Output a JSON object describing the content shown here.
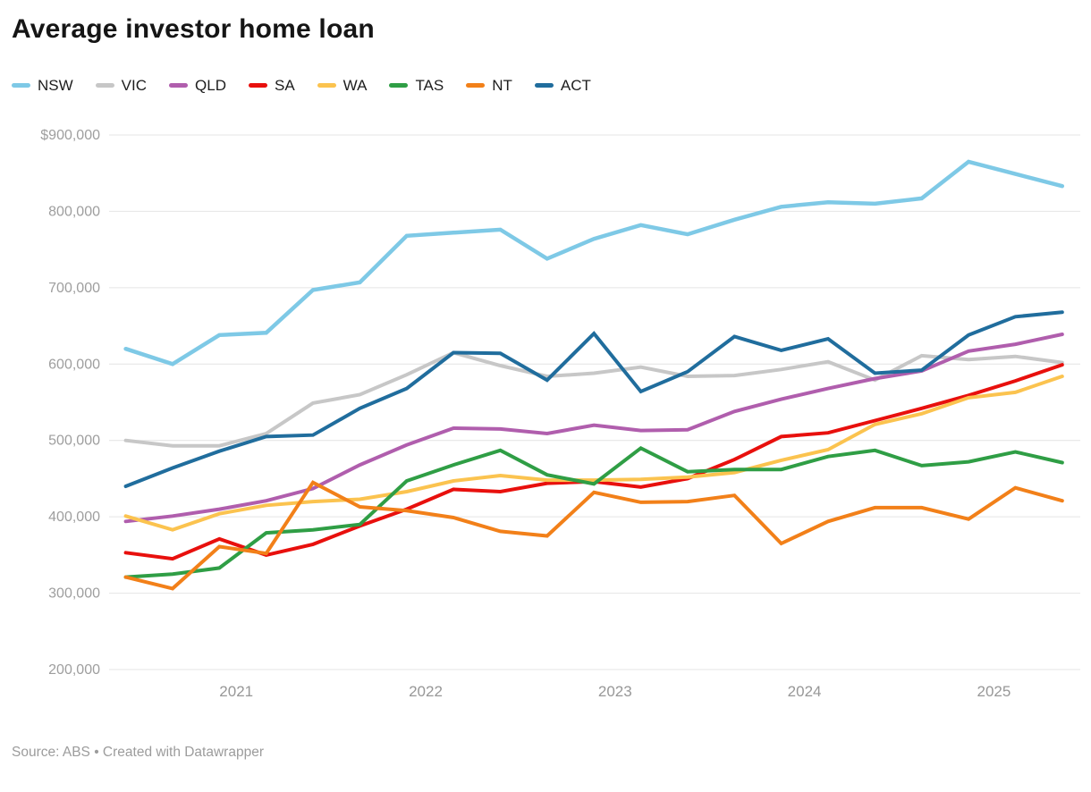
{
  "header": {
    "title": "Average investor home loan"
  },
  "footer": {
    "source_note": "Source: ABS • Created with Datawrapper"
  },
  "legend": [
    {
      "label": "NSW",
      "color": "#7ec9e6"
    },
    {
      "label": "VIC",
      "color": "#c7c7c7"
    },
    {
      "label": "QLD",
      "color": "#b05ead"
    },
    {
      "label": "SA",
      "color": "#e8100d"
    },
    {
      "label": "WA",
      "color": "#fbc34f"
    },
    {
      "label": "TAS",
      "color": "#2f9e45"
    },
    {
      "label": "NT",
      "color": "#f28019"
    },
    {
      "label": "ACT",
      "color": "#206d9d"
    }
  ],
  "chart_data": {
    "type": "line",
    "title": "Average investor home loan",
    "xlabel": "",
    "ylabel": "",
    "ylim": [
      200000,
      900000
    ],
    "grid": "horizontal",
    "legend_position": "top",
    "x_unit": "quarter",
    "x": [
      "2020-Q2",
      "2020-Q3",
      "2020-Q4",
      "2021-Q1",
      "2021-Q2",
      "2021-Q3",
      "2021-Q4",
      "2022-Q1",
      "2022-Q2",
      "2022-Q3",
      "2022-Q4",
      "2023-Q1",
      "2023-Q2",
      "2023-Q3",
      "2023-Q4",
      "2024-Q1",
      "2024-Q2",
      "2024-Q3",
      "2024-Q4",
      "2025-Q1",
      "2025-Q2"
    ],
    "x_label_years": [
      "2021",
      "2022",
      "2023",
      "2024",
      "2025"
    ],
    "y_ticks": [
      {
        "value": 900000,
        "label": "$900,000"
      },
      {
        "value": 800000,
        "label": "800,000"
      },
      {
        "value": 700000,
        "label": "700,000"
      },
      {
        "value": 600000,
        "label": "600,000"
      },
      {
        "value": 500000,
        "label": "500,000"
      },
      {
        "value": 400000,
        "label": "400,000"
      },
      {
        "value": 300000,
        "label": "300,000"
      },
      {
        "value": 200000,
        "label": "200,000"
      }
    ],
    "series": [
      {
        "name": "NSW",
        "color": "#7ec9e6",
        "values": [
          620000,
          600000,
          638000,
          641000,
          697000,
          707000,
          768000,
          772000,
          776000,
          738000,
          764000,
          782000,
          770000,
          789000,
          806000,
          812000,
          810000,
          817000,
          865000,
          849000,
          833000
        ]
      },
      {
        "name": "VIC",
        "color": "#c7c7c7",
        "values": [
          500000,
          493000,
          493000,
          509000,
          549000,
          560000,
          586000,
          615000,
          598000,
          584000,
          588000,
          596000,
          584000,
          585000,
          593000,
          603000,
          579000,
          611000,
          606000,
          610000,
          602000
        ]
      },
      {
        "name": "QLD",
        "color": "#b05ead",
        "values": [
          394000,
          401000,
          410000,
          421000,
          437000,
          468000,
          494000,
          516000,
          515000,
          509000,
          520000,
          513000,
          514000,
          538000,
          554000,
          568000,
          581000,
          591000,
          617000,
          626000,
          639000
        ]
      },
      {
        "name": "SA",
        "color": "#e8100d",
        "values": [
          353000,
          345000,
          371000,
          350000,
          364000,
          388000,
          410000,
          436000,
          433000,
          444000,
          446000,
          439000,
          450000,
          475000,
          505000,
          510000,
          526000,
          542000,
          559000,
          578000,
          599000
        ]
      },
      {
        "name": "WA",
        "color": "#fbc34f",
        "values": [
          401000,
          383000,
          404000,
          415000,
          420000,
          423000,
          433000,
          447000,
          454000,
          448000,
          448000,
          449000,
          452000,
          458000,
          474000,
          488000,
          521000,
          535000,
          556000,
          563000,
          584000
        ]
      },
      {
        "name": "TAS",
        "color": "#2f9e45",
        "values": [
          321000,
          325000,
          333000,
          379000,
          383000,
          390000,
          447000,
          468000,
          487000,
          455000,
          443000,
          490000,
          459000,
          462000,
          462000,
          479000,
          487000,
          467000,
          472000,
          485000,
          471000
        ]
      },
      {
        "name": "NT",
        "color": "#f28019",
        "values": [
          321000,
          306000,
          361000,
          352000,
          445000,
          413000,
          408000,
          399000,
          381000,
          375000,
          432000,
          419000,
          420000,
          428000,
          365000,
          394000,
          412000,
          412000,
          397000,
          438000,
          421000
        ]
      },
      {
        "name": "ACT",
        "color": "#206d9d",
        "values": [
          440000,
          464000,
          486000,
          505000,
          507000,
          542000,
          568000,
          615000,
          614000,
          579000,
          640000,
          564000,
          590000,
          636000,
          618000,
          633000,
          588000,
          592000,
          638000,
          662000,
          668000
        ]
      }
    ]
  }
}
